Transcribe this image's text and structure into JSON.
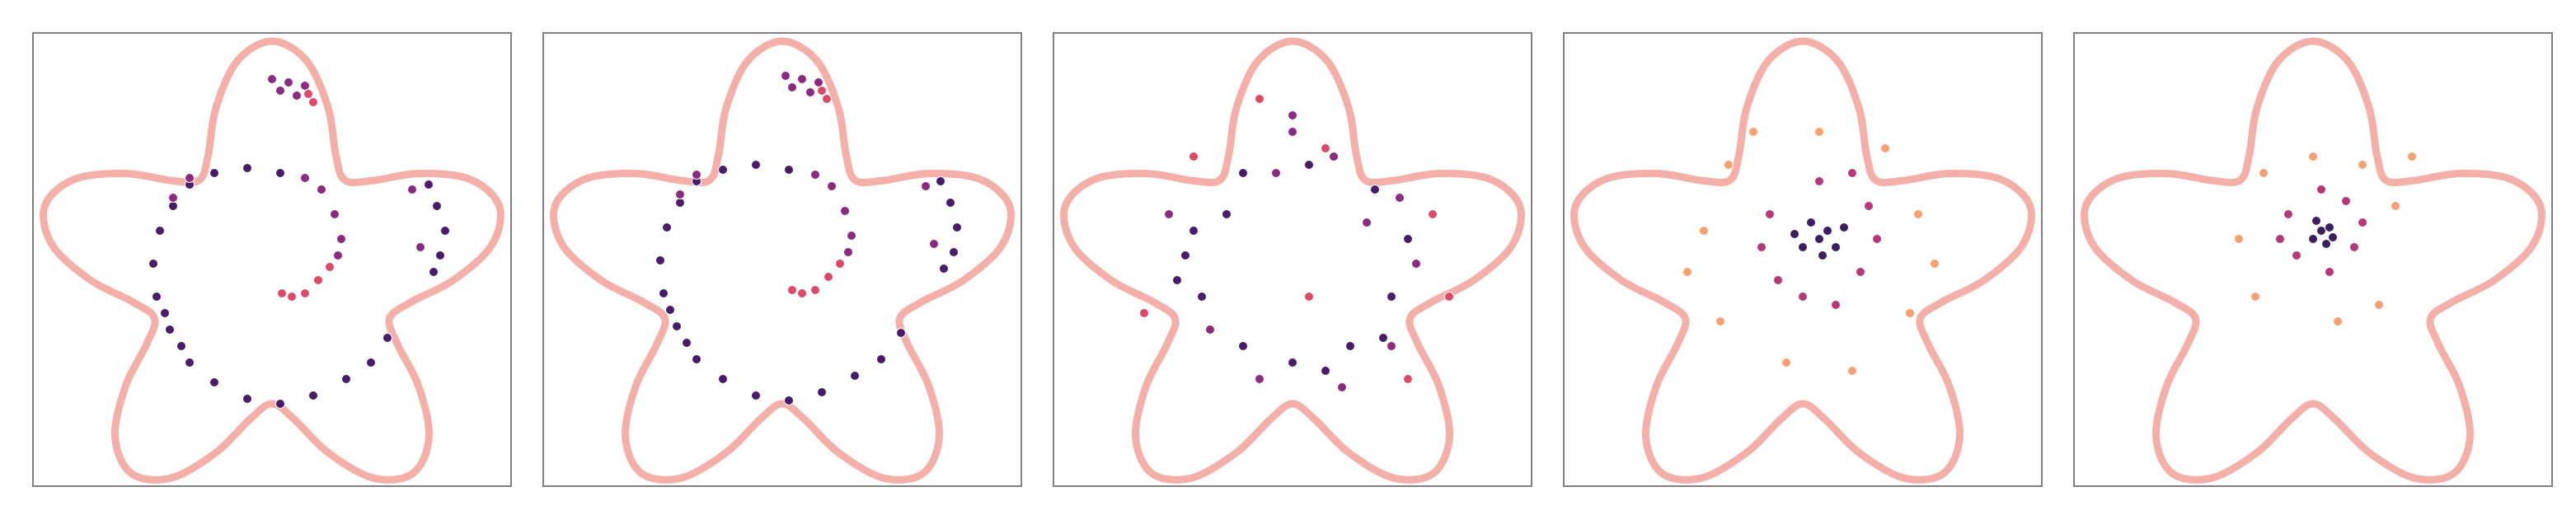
{
  "chart_data": [
    {
      "type": "scatter",
      "xlim": [
        -1.45,
        1.45
      ],
      "ylim": [
        -1.45,
        1.3
      ],
      "boundary": {
        "color": "#f4a6a0",
        "x": [
          1.1,
          1.331,
          1.379,
          1.2,
          0.89,
          0.603,
          0.441,
          0.387,
          0.34,
          0.21,
          0,
          -0.21,
          -0.34,
          -0.387,
          -0.441,
          -0.603,
          -0.89,
          -1.2,
          -1.379,
          -1.331,
          -1.1,
          -0.843,
          -0.713,
          -0.76,
          -0.89,
          -0.952,
          -0.853,
          -0.612,
          -0.34,
          -0.133,
          0,
          0.133,
          0.34,
          0.612,
          0.853,
          0.952,
          0.89,
          0.76,
          0.713,
          0.843
        ],
        "y": [
          -0.2,
          0.01,
          0.248,
          0.412,
          0.447,
          0.403,
          0.407,
          0.56,
          0.846,
          1.131,
          1.25,
          1.131,
          0.846,
          0.56,
          0.407,
          0.403,
          0.447,
          0.412,
          0.248,
          0.01,
          -0.2,
          -0.333,
          -0.432,
          -0.587,
          -0.847,
          -1.152,
          -1.373,
          -1.4,
          -1.246,
          -1.043,
          -0.95,
          -1.043,
          -1.246,
          -1.4,
          -1.373,
          -1.152,
          -0.847,
          -0.587,
          -0.432,
          -0.333
        ]
      },
      "series": [
        {
          "color": "#4a1a6b",
          "x": [
            -0.6,
            -0.68,
            -0.72,
            -0.7,
            -0.62,
            -0.5,
            -0.35,
            -0.15,
            0.05,
            0.25,
            0.45,
            0.6,
            0.7,
            -0.5,
            -0.35,
            -0.15,
            0.05,
            -0.55,
            -0.65,
            0.95,
            1.0,
            1.05,
            1.02,
            0.98
          ],
          "y": [
            0.25,
            0.1,
            -0.1,
            -0.3,
            -0.5,
            -0.7,
            -0.82,
            -0.92,
            -0.95,
            -0.9,
            -0.8,
            -0.7,
            -0.55,
            0.38,
            0.45,
            0.48,
            0.45,
            -0.6,
            -0.4,
            0.38,
            0.25,
            0.1,
            -0.05,
            -0.15
          ]
        },
        {
          "color": "#8c2981",
          "x": [
            0.2,
            0.3,
            0.38,
            0.42,
            0.4,
            -0.6,
            -0.5,
            0.85,
            0.9,
            0.05,
            0.1,
            0.15,
            0.2,
            0.0
          ],
          "y": [
            0.42,
            0.35,
            0.2,
            0.05,
            -0.05,
            0.3,
            0.42,
            0.35,
            0.0,
            0.95,
            1.0,
            0.92,
            0.98,
            1.02
          ]
        },
        {
          "color": "#de4968",
          "x": [
            0.35,
            0.28,
            0.2,
            0.12,
            0.06,
            0.25,
            0.22
          ],
          "y": [
            -0.12,
            -0.2,
            -0.28,
            -0.3,
            -0.28,
            0.88,
            0.93
          ]
        }
      ]
    },
    {
      "type": "scatter",
      "xlim": [
        -1.45,
        1.45
      ],
      "ylim": [
        -1.45,
        1.3
      ],
      "boundary": {
        "color": "#f4a6a0",
        "x": [
          1.1,
          1.331,
          1.379,
          1.2,
          0.89,
          0.603,
          0.441,
          0.387,
          0.34,
          0.21,
          0,
          -0.21,
          -0.34,
          -0.387,
          -0.441,
          -0.603,
          -0.89,
          -1.2,
          -1.379,
          -1.331,
          -1.1,
          -0.843,
          -0.713,
          -0.76,
          -0.89,
          -0.952,
          -0.853,
          -0.612,
          -0.34,
          -0.133,
          0,
          0.133,
          0.34,
          0.612,
          0.853,
          0.952,
          0.89,
          0.76,
          0.713,
          0.843
        ],
        "y": [
          -0.2,
          0.01,
          0.248,
          0.412,
          0.447,
          0.403,
          0.407,
          0.56,
          0.846,
          1.131,
          1.25,
          1.131,
          0.846,
          0.56,
          0.407,
          0.403,
          0.447,
          0.412,
          0.248,
          0.01,
          -0.2,
          -0.333,
          -0.432,
          -0.587,
          -0.847,
          -1.152,
          -1.373,
          -1.4,
          -1.246,
          -1.043,
          -0.95,
          -1.043,
          -1.246,
          -1.4,
          -1.373,
          -1.152,
          -0.847,
          -0.587,
          -0.432,
          -0.333
        ]
      },
      "series": [
        {
          "color": "#4a1a6b",
          "x": [
            -0.62,
            -0.7,
            -0.74,
            -0.72,
            -0.64,
            -0.52,
            -0.36,
            -0.16,
            0.04,
            0.24,
            0.44,
            0.6,
            0.72,
            -0.52,
            -0.36,
            -0.16,
            0.04,
            -0.58,
            -0.68,
            0.96,
            1.02,
            1.06,
            1.04,
            0.98
          ],
          "y": [
            0.27,
            0.12,
            -0.08,
            -0.28,
            -0.48,
            -0.68,
            -0.8,
            -0.9,
            -0.93,
            -0.88,
            -0.78,
            -0.68,
            -0.52,
            0.4,
            0.47,
            0.5,
            0.47,
            -0.58,
            -0.38,
            0.4,
            0.27,
            0.12,
            -0.03,
            -0.13
          ]
        },
        {
          "color": "#8c2981",
          "x": [
            0.2,
            0.3,
            0.38,
            0.42,
            0.4,
            -0.62,
            -0.52,
            0.87,
            0.92,
            0.06,
            0.12,
            0.17,
            0.22,
            0.02
          ],
          "y": [
            0.44,
            0.37,
            0.22,
            0.07,
            -0.03,
            0.32,
            0.44,
            0.37,
            0.02,
            0.97,
            1.02,
            0.94,
            1.0,
            1.04
          ]
        },
        {
          "color": "#de4968",
          "x": [
            0.35,
            0.28,
            0.2,
            0.12,
            0.06,
            0.27,
            0.24
          ],
          "y": [
            -0.1,
            -0.18,
            -0.26,
            -0.28,
            -0.26,
            0.9,
            0.95
          ]
        }
      ]
    },
    {
      "type": "scatter",
      "xlim": [
        -1.45,
        1.45
      ],
      "ylim": [
        -1.45,
        1.3
      ],
      "boundary": {
        "color": "#f4a6a0",
        "x": [
          1.1,
          1.331,
          1.379,
          1.2,
          0.89,
          0.603,
          0.441,
          0.387,
          0.34,
          0.21,
          0,
          -0.21,
          -0.34,
          -0.387,
          -0.441,
          -0.603,
          -0.89,
          -1.2,
          -1.379,
          -1.331,
          -1.1,
          -0.843,
          -0.713,
          -0.76,
          -0.89,
          -0.952,
          -0.853,
          -0.612,
          -0.34,
          -0.133,
          0,
          0.133,
          0.34,
          0.612,
          0.853,
          0.952,
          0.89,
          0.76,
          0.713,
          0.843
        ],
        "y": [
          -0.2,
          0.01,
          0.248,
          0.412,
          0.447,
          0.403,
          0.407,
          0.56,
          0.846,
          1.131,
          1.25,
          1.131,
          0.846,
          0.56,
          0.407,
          0.403,
          0.447,
          0.412,
          0.248,
          0.01,
          -0.2,
          -0.333,
          -0.432,
          -0.587,
          -0.847,
          -1.152,
          -1.373,
          -1.4,
          -1.246,
          -1.043,
          -0.95,
          -1.043,
          -1.246,
          -1.4,
          -1.373,
          -1.152,
          -0.847,
          -0.587,
          -0.432,
          -0.333
        ]
      },
      "series": [
        {
          "color": "#4a1a6b",
          "x": [
            -0.6,
            -0.55,
            -0.3,
            0.0,
            0.35,
            0.6,
            0.7,
            0.5,
            0.1,
            -0.3,
            -0.65,
            -0.4,
            0.2,
            0.55,
            -0.7
          ],
          "y": [
            0.1,
            -0.3,
            -0.6,
            -0.7,
            -0.6,
            -0.3,
            0.05,
            0.35,
            0.5,
            0.45,
            -0.05,
            0.2,
            -0.75,
            -0.55,
            -0.2
          ]
        },
        {
          "color": "#8c2981",
          "x": [
            0.75,
            0.6,
            -0.2,
            0.25,
            -0.5,
            0.45,
            0.0,
            -0.75,
            0.65,
            -0.1,
            0.3,
            0.0
          ],
          "y": [
            -0.1,
            -0.6,
            -0.8,
            0.55,
            -0.5,
            0.15,
            0.7,
            0.2,
            0.3,
            0.45,
            -0.85,
            0.8
          ]
        },
        {
          "color": "#de4968",
          "x": [
            0.85,
            -0.9,
            0.7,
            -0.6,
            0.2,
            0.95,
            -0.2,
            0.1
          ],
          "y": [
            0.2,
            -0.4,
            -0.8,
            0.55,
            0.6,
            -0.3,
            0.9,
            -0.3
          ]
        }
      ]
    },
    {
      "type": "scatter",
      "xlim": [
        -1.45,
        1.45
      ],
      "ylim": [
        -1.45,
        1.3
      ],
      "boundary": {
        "color": "#f4a6a0",
        "x": [
          1.1,
          1.331,
          1.379,
          1.2,
          0.89,
          0.603,
          0.441,
          0.387,
          0.34,
          0.21,
          0,
          -0.21,
          -0.34,
          -0.387,
          -0.441,
          -0.603,
          -0.89,
          -1.2,
          -1.379,
          -1.331,
          -1.1,
          -0.843,
          -0.713,
          -0.76,
          -0.89,
          -0.952,
          -0.853,
          -0.612,
          -0.34,
          -0.133,
          0,
          0.133,
          0.34,
          0.612,
          0.853,
          0.952,
          0.89,
          0.76,
          0.713,
          0.843
        ],
        "y": [
          -0.2,
          0.01,
          0.248,
          0.412,
          0.447,
          0.403,
          0.407,
          0.56,
          0.846,
          1.131,
          1.25,
          1.131,
          0.846,
          0.56,
          0.407,
          0.403,
          0.447,
          0.412,
          0.248,
          0.01,
          -0.2,
          -0.333,
          -0.432,
          -0.587,
          -0.847,
          -1.152,
          -1.373,
          -1.4,
          -1.246,
          -1.043,
          -0.95,
          -1.043,
          -1.246,
          -1.4,
          -1.373,
          -1.152,
          -0.847,
          -0.587,
          -0.432,
          -0.333
        ]
      },
      "series": [
        {
          "color": "#f7a072",
          "x": [
            -0.6,
            0.7,
            -0.5,
            0.65,
            0.1,
            -0.1,
            0.5,
            -0.45,
            0.8,
            -0.7,
            0.3,
            -0.3
          ],
          "y": [
            0.1,
            0.2,
            -0.45,
            -0.4,
            0.7,
            -0.7,
            0.6,
            0.5,
            -0.1,
            -0.15,
            -0.75,
            0.7
          ]
        },
        {
          "color": "#b73779",
          "x": [
            -0.2,
            0.35,
            0.4,
            -0.15,
            0.1,
            0.0,
            0.3,
            -0.25,
            0.2,
            0.45
          ],
          "y": [
            0.2,
            -0.15,
            0.25,
            -0.2,
            0.4,
            -0.3,
            0.45,
            0.0,
            -0.35,
            0.05
          ]
        },
        {
          "color": "#3b1f5e",
          "x": [
            0.1,
            0.15,
            0.0,
            0.2,
            0.05,
            0.12,
            -0.05,
            0.25
          ],
          "y": [
            0.05,
            0.1,
            0.0,
            0.0,
            0.15,
            -0.05,
            0.08,
            0.12
          ]
        }
      ]
    },
    {
      "type": "scatter",
      "xlim": [
        -1.45,
        1.45
      ],
      "ylim": [
        -1.45,
        1.3
      ],
      "boundary": {
        "color": "#f4a6a0",
        "x": [
          1.1,
          1.331,
          1.379,
          1.2,
          0.89,
          0.603,
          0.441,
          0.387,
          0.34,
          0.21,
          0,
          -0.21,
          -0.34,
          -0.387,
          -0.441,
          -0.603,
          -0.89,
          -1.2,
          -1.379,
          -1.331,
          -1.1,
          -0.843,
          -0.713,
          -0.76,
          -0.89,
          -0.952,
          -0.853,
          -0.612,
          -0.34,
          -0.133,
          0,
          0.133,
          0.34,
          0.612,
          0.853,
          0.952,
          0.89,
          0.76,
          0.713,
          0.843
        ],
        "y": [
          -0.2,
          0.01,
          0.248,
          0.412,
          0.447,
          0.403,
          0.407,
          0.56,
          0.846,
          1.131,
          1.25,
          1.131,
          0.846,
          0.56,
          0.407,
          0.403,
          0.447,
          0.412,
          0.248,
          0.01,
          -0.2,
          -0.333,
          -0.432,
          -0.587,
          -0.847,
          -1.152,
          -1.373,
          -1.4,
          -1.246,
          -1.043,
          -0.95,
          -1.043,
          -1.246,
          -1.4,
          -1.373,
          -1.152,
          -0.847,
          -0.587,
          -0.432,
          -0.333
        ]
      },
      "series": [
        {
          "color": "#f7a072",
          "x": [
            -0.45,
            0.5,
            -0.35,
            0.4,
            0.0,
            0.15,
            -0.3,
            0.6,
            0.3
          ],
          "y": [
            0.05,
            0.25,
            -0.3,
            -0.35,
            0.55,
            -0.45,
            0.45,
            0.55,
            0.5
          ]
        },
        {
          "color": "#b73779",
          "x": [
            -0.15,
            0.25,
            0.2,
            -0.1,
            0.05,
            0.3,
            -0.2,
            0.1
          ],
          "y": [
            0.2,
            0.0,
            0.28,
            -0.05,
            0.35,
            0.15,
            0.05,
            -0.15
          ]
        },
        {
          "color": "#3b1f5e",
          "x": [
            0.05,
            0.1,
            0.0,
            0.12,
            0.02,
            0.08
          ],
          "y": [
            0.1,
            0.12,
            0.05,
            0.06,
            0.16,
            0.02
          ]
        }
      ]
    }
  ]
}
